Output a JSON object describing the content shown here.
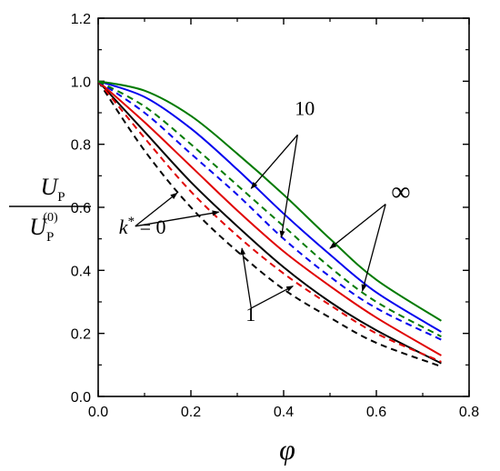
{
  "chart_data": {
    "type": "line",
    "xlabel": "φ",
    "ylabel": {
      "numerator_main": "U",
      "numerator_sub": "P",
      "denominator_main": "U",
      "denominator_sub": "P",
      "denominator_sup": "(0)"
    },
    "xlim": [
      0.0,
      0.8
    ],
    "ylim": [
      0.0,
      1.2
    ],
    "x_ticks": [
      "0.0",
      "0.2",
      "0.4",
      "0.6",
      "0.8"
    ],
    "y_ticks": [
      "0.0",
      "0.2",
      "0.4",
      "0.6",
      "0.8",
      "1.0",
      "1.2"
    ],
    "grid": false,
    "legend": "none",
    "x": [
      0.0,
      0.1,
      0.2,
      0.3,
      0.4,
      0.5,
      0.6,
      0.74
    ],
    "series": [
      {
        "color": "#000000",
        "dash": "solid",
        "values": [
          1.0,
          0.84,
          0.68,
          0.54,
          0.41,
          0.3,
          0.21,
          0.105
        ]
      },
      {
        "color": "#000000",
        "dash": "dashed",
        "values": [
          1.0,
          0.78,
          0.6,
          0.46,
          0.34,
          0.25,
          0.17,
          0.095
        ]
      },
      {
        "color": "#e00000",
        "dash": "solid",
        "values": [
          1.0,
          0.87,
          0.73,
          0.59,
          0.46,
          0.35,
          0.25,
          0.13
        ]
      },
      {
        "color": "#e00000",
        "dash": "dashed",
        "values": [
          1.0,
          0.82,
          0.65,
          0.51,
          0.39,
          0.29,
          0.2,
          0.11
        ]
      },
      {
        "color": "#0000ee",
        "dash": "solid",
        "values": [
          1.0,
          0.95,
          0.85,
          0.72,
          0.58,
          0.45,
          0.33,
          0.205
        ]
      },
      {
        "color": "#0000ee",
        "dash": "dashed",
        "values": [
          1.0,
          0.9,
          0.77,
          0.64,
          0.5,
          0.38,
          0.28,
          0.18
        ]
      },
      {
        "color": "#007a00",
        "dash": "solid",
        "values": [
          1.0,
          0.97,
          0.89,
          0.77,
          0.64,
          0.5,
          0.37,
          0.24
        ]
      },
      {
        "color": "#007a00",
        "dash": "dashed",
        "values": [
          1.0,
          0.92,
          0.8,
          0.67,
          0.54,
          0.41,
          0.3,
          0.19
        ]
      }
    ],
    "annotations": [
      {
        "text": "10",
        "style": "normal",
        "anchor": [
          0.43,
          0.83
        ],
        "targets": [
          [
            0.33,
            0.66
          ],
          [
            0.395,
            0.505
          ]
        ]
      },
      {
        "text": "∞",
        "style": "normal",
        "anchor": [
          0.62,
          0.61
        ],
        "targets": [
          [
            0.5,
            0.47
          ],
          [
            0.57,
            0.335
          ]
        ]
      },
      {
        "text": "1",
        "style": "normal",
        "anchor": [
          0.33,
          0.28
        ],
        "targets": [
          [
            0.31,
            0.47
          ],
          [
            0.42,
            0.35
          ]
        ]
      },
      {
        "text": "k* = 0",
        "style": "italic",
        "anchor": [
          0.08,
          0.54
        ],
        "targets": [
          [
            0.17,
            0.645
          ],
          [
            0.26,
            0.585
          ]
        ]
      }
    ]
  }
}
